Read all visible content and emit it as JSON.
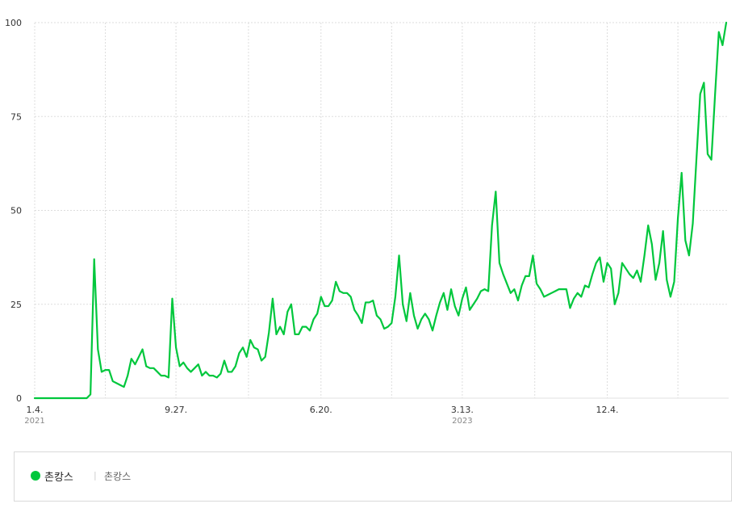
{
  "chart_data": {
    "type": "line",
    "title": "",
    "xlabel": "",
    "ylabel": "",
    "ylim": [
      0,
      100
    ],
    "yticks": [
      0,
      25,
      50,
      75,
      100
    ],
    "grid": true,
    "xtick_labels": [
      {
        "label": "1.4.",
        "sub": "2021",
        "index": 0
      },
      {
        "label": "9.27.",
        "sub": "",
        "index": 38
      },
      {
        "label": "6.20.",
        "sub": "",
        "index": 77
      },
      {
        "label": "3.13.",
        "sub": "2023",
        "index": 115
      },
      {
        "label": "12.4.",
        "sub": "",
        "index": 154
      }
    ],
    "series": [
      {
        "name": "촌캉스",
        "color": "#00c73c",
        "values": [
          0,
          0,
          0,
          0,
          0,
          0,
          0,
          0,
          0,
          0,
          0,
          0,
          0,
          0,
          0,
          1,
          37,
          13,
          7,
          7.5,
          7.5,
          4.5,
          4,
          3.5,
          3,
          6,
          10.5,
          9,
          11,
          13,
          8.5,
          8,
          8,
          7,
          6,
          6,
          5.5,
          26.5,
          13.5,
          8.5,
          9.5,
          8,
          7,
          8,
          9,
          6,
          7,
          6,
          6,
          5.5,
          6.5,
          10,
          7,
          7,
          8.5,
          12,
          13.5,
          11,
          15.5,
          13.5,
          13,
          10,
          11,
          17.5,
          26.5,
          17,
          19,
          17,
          23,
          25,
          17,
          17,
          19,
          19,
          18,
          21,
          22.5,
          27,
          24.5,
          24.5,
          26,
          31,
          28.5,
          28,
          28,
          27,
          23.5,
          22,
          20,
          25.5,
          25.5,
          26,
          22,
          21,
          18.5,
          19,
          20,
          27,
          38,
          25,
          20.5,
          28,
          22,
          18.5,
          21,
          22.5,
          21,
          18,
          22,
          25.5,
          28,
          23.5,
          29,
          24.5,
          22,
          26.5,
          29.5,
          23.5,
          25,
          26.5,
          28.5,
          29,
          28.5,
          46,
          55,
          36,
          33,
          30.5,
          28,
          29,
          26,
          30,
          32.5,
          32.5,
          38,
          30.5,
          29,
          27,
          27.5,
          28,
          28.5,
          29,
          29,
          29,
          24,
          26.5,
          28,
          27,
          30,
          29.5,
          33,
          36,
          37.5,
          31,
          36,
          34.5,
          25,
          28,
          36,
          34.5,
          33,
          32,
          34,
          31,
          38,
          46,
          41,
          31.5,
          36,
          44.5,
          31.5,
          27,
          31,
          48,
          60,
          42,
          38,
          46.5,
          64,
          81,
          84,
          65,
          63.5,
          81,
          97.5,
          94,
          100
        ]
      }
    ]
  },
  "legend": {
    "series_name": "촌캉스",
    "search_terms": "촌캉스",
    "separator": "|"
  }
}
